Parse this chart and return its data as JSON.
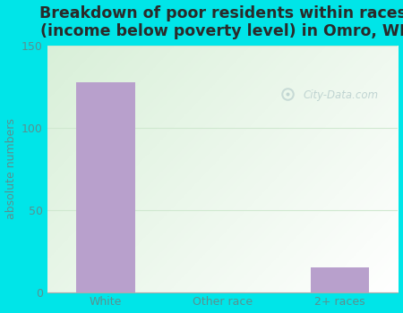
{
  "categories": [
    "White",
    "Other race",
    "2+ races"
  ],
  "values": [
    128,
    0,
    15
  ],
  "bar_color": "#b8a0cc",
  "title": "Breakdown of poor residents within races\n(income below poverty level) in Omro, WI",
  "ylabel": "absolute numbers",
  "ylim": [
    0,
    150
  ],
  "yticks": [
    0,
    50,
    100,
    150
  ],
  "background_outer": "#00e5e8",
  "plot_bg_color1": "#d8f0d8",
  "plot_bg_color2": "#f8fff8",
  "title_color": "#2a2a2a",
  "axis_color": "#4a7a7a",
  "tick_color": "#5a9090",
  "watermark": "City-Data.com",
  "title_fontsize": 12.5,
  "ylabel_fontsize": 9,
  "tick_fontsize": 9,
  "grid_color": "#d0e8d0",
  "bar_width": 0.5
}
